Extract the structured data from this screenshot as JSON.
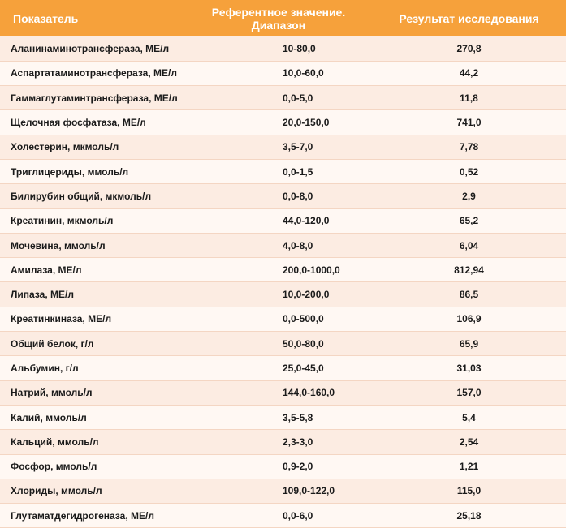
{
  "table": {
    "headers": {
      "indicator": "Показатель",
      "reference_line1": "Референтное значение.",
      "reference_line2": "Диапазон",
      "result": "Результат исследования"
    },
    "rows": [
      {
        "name": "Аланинаминотрансфераза, МЕ/л",
        "reference": "10-80,0",
        "result": "270,8"
      },
      {
        "name": "Аспартатаминотрансфераза, МЕ/л",
        "reference": "10,0-60,0",
        "result": "44,2"
      },
      {
        "name": "Гаммаглутаминтрансфераза, МЕ/л",
        "reference": "0,0-5,0",
        "result": "11,8"
      },
      {
        "name": "Щелочная фосфатаза, МЕ/л",
        "reference": "20,0-150,0",
        "result": "741,0"
      },
      {
        "name": "Холестерин, мкмоль/л",
        "reference": "3,5-7,0",
        "result": "7,78"
      },
      {
        "name": "Триглицериды, ммоль/л",
        "reference": "0,0-1,5",
        "result": "0,52"
      },
      {
        "name": "Билирубин общий, мкмоль/л",
        "reference": "0,0-8,0",
        "result": "2,9"
      },
      {
        "name": "Креатинин, мкмоль/л",
        "reference": "44,0-120,0",
        "result": "65,2"
      },
      {
        "name": "Мочевина, ммоль/л",
        "reference": "4,0-8,0",
        "result": "6,04"
      },
      {
        "name": "Амилаза, МЕ/л",
        "reference": "200,0-1000,0",
        "result": "812,94"
      },
      {
        "name": "Липаза, МЕ/л",
        "reference": "10,0-200,0",
        "result": "86,5"
      },
      {
        "name": "Креатинкиназа, МЕ/л",
        "reference": "0,0-500,0",
        "result": "106,9"
      },
      {
        "name": "Общий белок, г/л",
        "reference": "50,0-80,0",
        "result": "65,9"
      },
      {
        "name": "Альбумин, г/л",
        "reference": "25,0-45,0",
        "result": "31,03"
      },
      {
        "name": "Натрий, ммоль/л",
        "reference": "144,0-160,0",
        "result": "157,0"
      },
      {
        "name": "Калий, ммоль/л",
        "reference": "3,5-5,8",
        "result": "5,4"
      },
      {
        "name": "Кальций, ммоль/л",
        "reference": "2,3-3,0",
        "result": "2,54"
      },
      {
        "name": "Фосфор, ммоль/л",
        "reference": "0,9-2,0",
        "result": "1,21"
      },
      {
        "name": "Хлориды, ммоль/л",
        "reference": "109,0-122,0",
        "result": "115,0"
      },
      {
        "name": "Глутаматдегидрогеназа, МЕ/л",
        "reference": "0,0-6,0",
        "result": "25,18"
      }
    ]
  },
  "colors": {
    "header_bg": "#f6a13b",
    "row_odd": "#fcece2",
    "row_even": "#fff8f3"
  }
}
